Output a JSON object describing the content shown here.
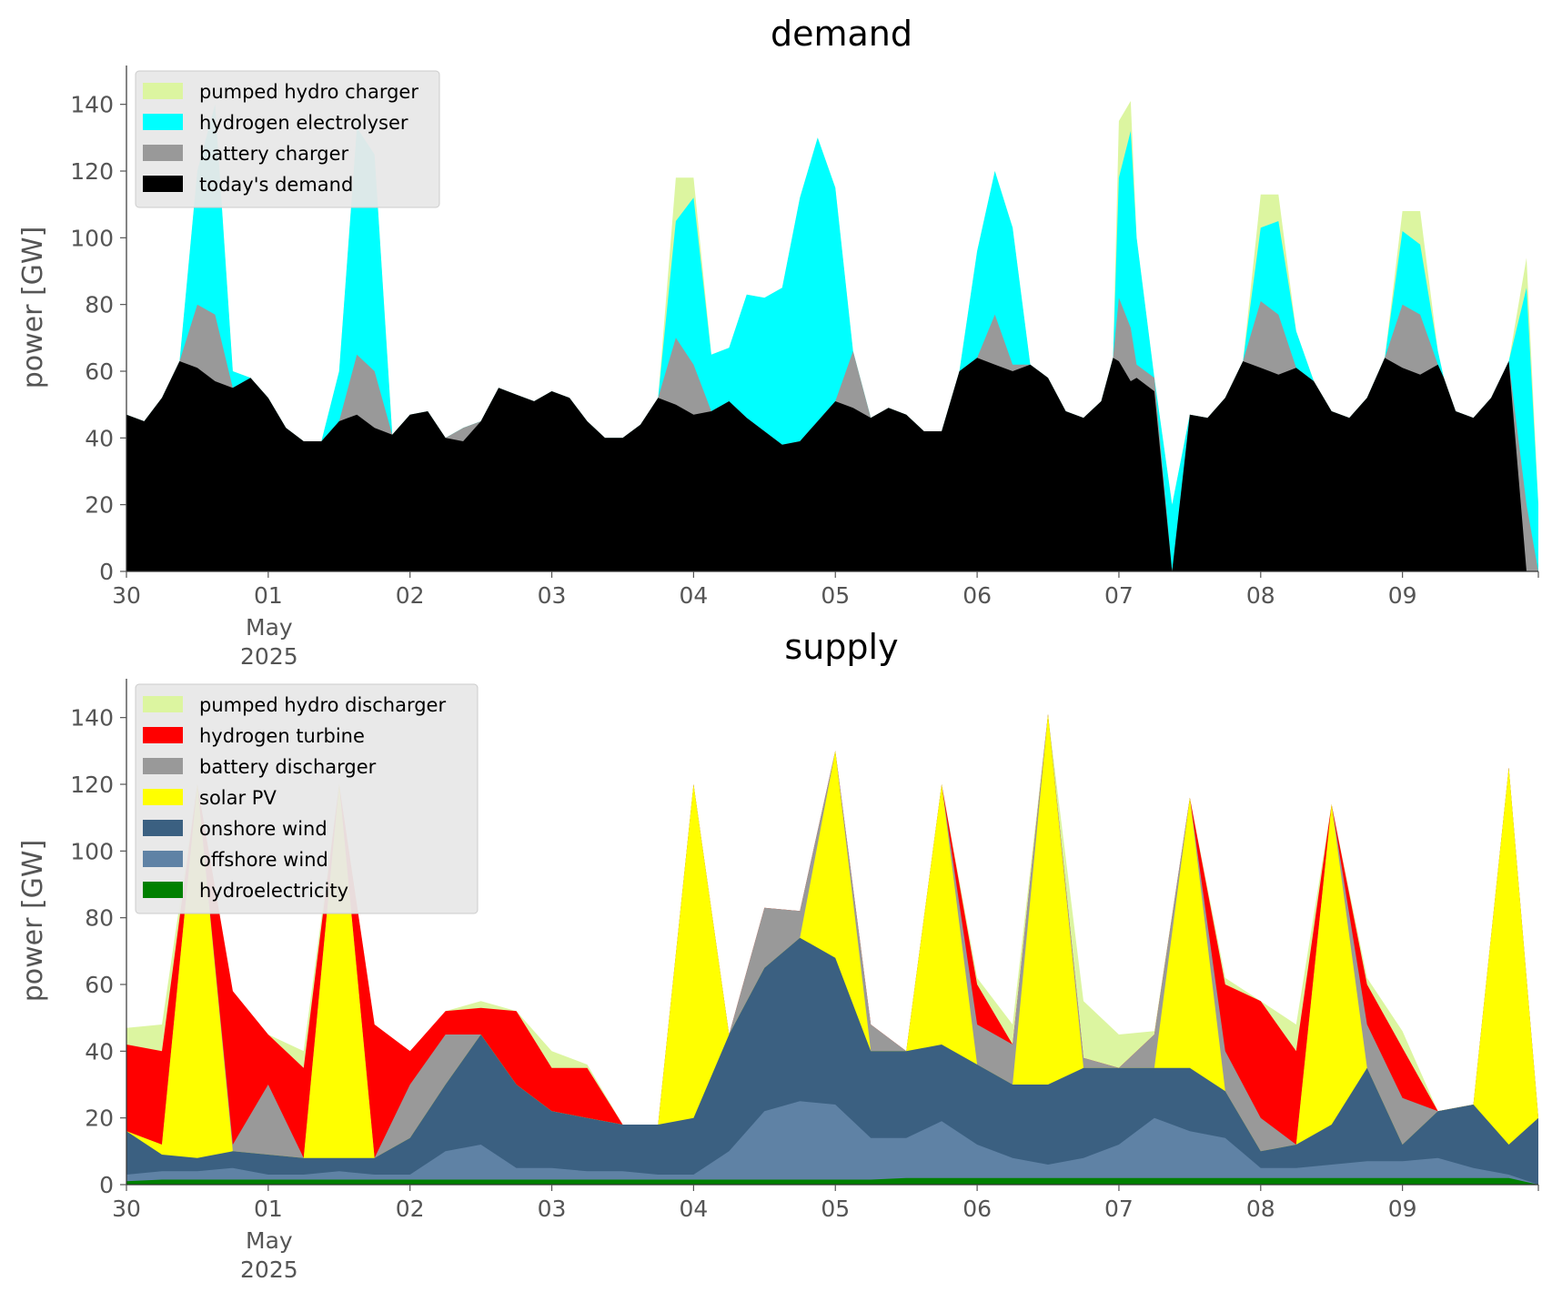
{
  "chart_data": [
    {
      "type": "area",
      "title": "demand",
      "xlabel": "",
      "ylabel": "power [GW]",
      "ylim": [
        0,
        150
      ],
      "y_ticks": [
        0,
        20,
        40,
        60,
        80,
        100,
        120,
        140
      ],
      "x_ticks": [
        {
          "label": "30",
          "sub": ""
        },
        {
          "label": "01",
          "sub": "May\n2025"
        },
        {
          "label": "02",
          "sub": ""
        },
        {
          "label": "03",
          "sub": ""
        },
        {
          "label": "04",
          "sub": ""
        },
        {
          "label": "05",
          "sub": ""
        },
        {
          "label": "06",
          "sub": ""
        },
        {
          "label": "07",
          "sub": ""
        },
        {
          "label": "08",
          "sub": ""
        },
        {
          "label": "09",
          "sub": ""
        }
      ],
      "x_unit": "hours from 2025-04-30 00:00",
      "xlim": [
        0,
        239
      ],
      "grid": false,
      "legend_position": "top-left",
      "x": [
        0,
        3,
        6,
        9,
        12,
        15,
        18,
        21,
        24,
        27,
        30,
        33,
        36,
        39,
        42,
        45,
        48,
        51,
        54,
        57,
        60,
        63,
        66,
        69,
        72,
        75,
        78,
        81,
        84,
        87,
        90,
        93,
        96,
        99,
        102,
        105,
        108,
        111,
        114,
        117,
        120,
        123,
        126,
        129,
        132,
        135,
        138,
        141,
        144,
        147,
        150,
        153,
        156,
        159,
        162,
        165,
        167,
        168,
        170,
        171,
        174,
        177,
        180,
        183,
        186,
        189,
        192,
        195,
        198,
        201,
        204,
        207,
        210,
        213,
        216,
        219,
        222,
        223,
        225,
        228,
        231,
        234,
        237,
        239
      ],
      "series": [
        {
          "name": "today's demand",
          "color": "#000000",
          "values": [
            47,
            45,
            52,
            63,
            61,
            57,
            55,
            58,
            52,
            43,
            39,
            39,
            45,
            47,
            43,
            41,
            47,
            48,
            40,
            39,
            45,
            55,
            53,
            51,
            54,
            52,
            45,
            40,
            40,
            44,
            52,
            50,
            47,
            48,
            51,
            46,
            42,
            38,
            39,
            45,
            51,
            49,
            46,
            49,
            47,
            42,
            42,
            60,
            64,
            62,
            60,
            62,
            58,
            48,
            46,
            51,
            64,
            63,
            57,
            58,
            54,
            0,
            47,
            46,
            52,
            63,
            61,
            59,
            61,
            57,
            48,
            46,
            52,
            64,
            61,
            59,
            62,
            58,
            48,
            46,
            52,
            63,
            0,
            0
          ]
        },
        {
          "name": "battery charger",
          "color": "#999999",
          "values": [
            47,
            45,
            52,
            63,
            80,
            77,
            55,
            58,
            52,
            43,
            39,
            39,
            45,
            65,
            60,
            41,
            47,
            48,
            40,
            43,
            45,
            55,
            53,
            51,
            54,
            52,
            45,
            40,
            40,
            44,
            52,
            70,
            62,
            48,
            51,
            46,
            42,
            38,
            39,
            45,
            51,
            66,
            46,
            49,
            47,
            42,
            42,
            60,
            64,
            77,
            62,
            62,
            58,
            48,
            46,
            51,
            64,
            82,
            73,
            62,
            58,
            0,
            47,
            46,
            52,
            63,
            81,
            77,
            61,
            57,
            48,
            46,
            52,
            64,
            80,
            77,
            62,
            58,
            48,
            46,
            52,
            63,
            20,
            0
          ]
        },
        {
          "name": "hydrogen electrolyser",
          "color": "#00ffff",
          "values": [
            47,
            45,
            52,
            63,
            120,
            140,
            60,
            58,
            52,
            43,
            39,
            39,
            60,
            133,
            125,
            41,
            47,
            48,
            40,
            43,
            45,
            55,
            53,
            51,
            54,
            52,
            45,
            40,
            40,
            44,
            52,
            105,
            112,
            65,
            67,
            83,
            82,
            85,
            112,
            130,
            115,
            66,
            46,
            49,
            47,
            42,
            42,
            60,
            96,
            120,
            103,
            62,
            58,
            48,
            46,
            51,
            64,
            118,
            132,
            100,
            58,
            20,
            47,
            46,
            52,
            63,
            103,
            105,
            72,
            57,
            48,
            46,
            52,
            64,
            102,
            98,
            66,
            58,
            48,
            46,
            52,
            63,
            85,
            20
          ]
        },
        {
          "name": "pumped hydro charger",
          "color": "#dcf5a0",
          "values": [
            47,
            45,
            52,
            63,
            120,
            140,
            60,
            58,
            52,
            43,
            39,
            39,
            60,
            133,
            125,
            41,
            47,
            48,
            40,
            43,
            45,
            55,
            53,
            51,
            54,
            52,
            45,
            40,
            40,
            44,
            52,
            118,
            118,
            65,
            67,
            83,
            82,
            85,
            112,
            130,
            115,
            66,
            46,
            49,
            47,
            42,
            42,
            60,
            96,
            120,
            103,
            62,
            58,
            48,
            46,
            51,
            64,
            135,
            141,
            100,
            58,
            20,
            47,
            46,
            52,
            63,
            113,
            113,
            72,
            57,
            48,
            46,
            52,
            64,
            108,
            108,
            66,
            58,
            48,
            46,
            52,
            63,
            94,
            20
          ]
        }
      ]
    },
    {
      "type": "area",
      "title": "supply",
      "xlabel": "",
      "ylabel": "power [GW]",
      "ylim": [
        0,
        150
      ],
      "y_ticks": [
        0,
        20,
        40,
        60,
        80,
        100,
        120,
        140
      ],
      "x_ticks": [
        {
          "label": "30",
          "sub": ""
        },
        {
          "label": "01",
          "sub": "May\n2025"
        },
        {
          "label": "02",
          "sub": ""
        },
        {
          "label": "03",
          "sub": ""
        },
        {
          "label": "04",
          "sub": ""
        },
        {
          "label": "05",
          "sub": ""
        },
        {
          "label": "06",
          "sub": ""
        },
        {
          "label": "07",
          "sub": ""
        },
        {
          "label": "08",
          "sub": ""
        },
        {
          "label": "09",
          "sub": ""
        }
      ],
      "x_unit": "hours from 2025-04-30 00:00",
      "xlim": [
        0,
        239
      ],
      "grid": false,
      "legend_position": "top-left",
      "x": [
        0,
        6,
        12,
        18,
        24,
        30,
        36,
        42,
        48,
        54,
        60,
        66,
        72,
        78,
        84,
        90,
        96,
        102,
        108,
        114,
        120,
        126,
        132,
        138,
        144,
        150,
        156,
        162,
        168,
        174,
        180,
        186,
        192,
        198,
        204,
        210,
        216,
        222,
        228,
        234,
        239
      ],
      "series": [
        {
          "name": "hydroelectricity",
          "color": "#008000",
          "values": [
            1,
            1.5,
            1.5,
            1.5,
            1.5,
            1.5,
            1.5,
            1.5,
            1.5,
            1.5,
            1.5,
            1.5,
            1.5,
            1.5,
            1.5,
            1.5,
            1.5,
            1.5,
            1.5,
            1.5,
            1.5,
            1.5,
            2,
            2,
            2,
            2,
            2,
            2,
            2,
            2,
            2,
            2,
            2,
            2,
            2,
            2,
            2,
            2,
            2,
            2,
            0
          ]
        },
        {
          "name": "offshore wind",
          "color": "#5f82a5",
          "values": [
            3,
            4,
            4,
            5,
            3,
            3,
            4,
            3,
            3,
            10,
            12,
            5,
            5,
            4,
            4,
            3,
            3,
            10,
            22,
            25,
            24,
            14,
            14,
            19,
            12,
            8,
            6,
            8,
            12,
            20,
            16,
            14,
            5,
            5,
            6,
            7,
            7,
            8,
            5,
            3,
            0
          ]
        },
        {
          "name": "onshore wind",
          "color": "#3b6081",
          "values": [
            16,
            9,
            8,
            10,
            9,
            8,
            8,
            8,
            14,
            30,
            45,
            30,
            22,
            20,
            18,
            18,
            20,
            45,
            65,
            74,
            68,
            40,
            40,
            42,
            36,
            30,
            30,
            35,
            35,
            35,
            35,
            28,
            10,
            12,
            18,
            35,
            12,
            22,
            24,
            12,
            20
          ]
        },
        {
          "name": "solar PV",
          "color": "#ffff00",
          "values": [
            16,
            12,
            120,
            10,
            9,
            8,
            120,
            8,
            14,
            30,
            45,
            30,
            22,
            20,
            18,
            18,
            120,
            45,
            65,
            74,
            130,
            40,
            40,
            120,
            36,
            30,
            141,
            35,
            35,
            35,
            116,
            28,
            10,
            12,
            114,
            35,
            12,
            22,
            24,
            125,
            20
          ]
        },
        {
          "name": "battery discharger",
          "color": "#999999",
          "values": [
            16,
            12,
            120,
            12,
            30,
            8,
            120,
            8,
            30,
            45,
            45,
            30,
            22,
            20,
            18,
            18,
            120,
            45,
            83,
            82,
            130,
            48,
            40,
            120,
            48,
            42,
            141,
            38,
            35,
            45,
            116,
            40,
            20,
            12,
            114,
            48,
            26,
            22,
            24,
            125,
            20
          ]
        },
        {
          "name": "hydrogen turbine",
          "color": "#ff0000",
          "values": [
            42,
            40,
            120,
            58,
            45,
            35,
            120,
            48,
            40,
            52,
            53,
            52,
            35,
            35,
            18,
            18,
            120,
            45,
            83,
            82,
            130,
            48,
            40,
            120,
            60,
            42,
            141,
            38,
            35,
            45,
            116,
            60,
            55,
            40,
            114,
            60,
            41,
            22,
            24,
            125,
            20
          ]
        },
        {
          "name": "pumped hydro discharger",
          "color": "#dcf5a0",
          "values": [
            47,
            48,
            120,
            58,
            45,
            40,
            120,
            48,
            40,
            52,
            55,
            52,
            40,
            36,
            18,
            18,
            120,
            45,
            83,
            82,
            130,
            48,
            40,
            120,
            62,
            48,
            141,
            55,
            45,
            46,
            116,
            62,
            55,
            48,
            114,
            62,
            46,
            22,
            24,
            125,
            20
          ]
        }
      ]
    }
  ]
}
